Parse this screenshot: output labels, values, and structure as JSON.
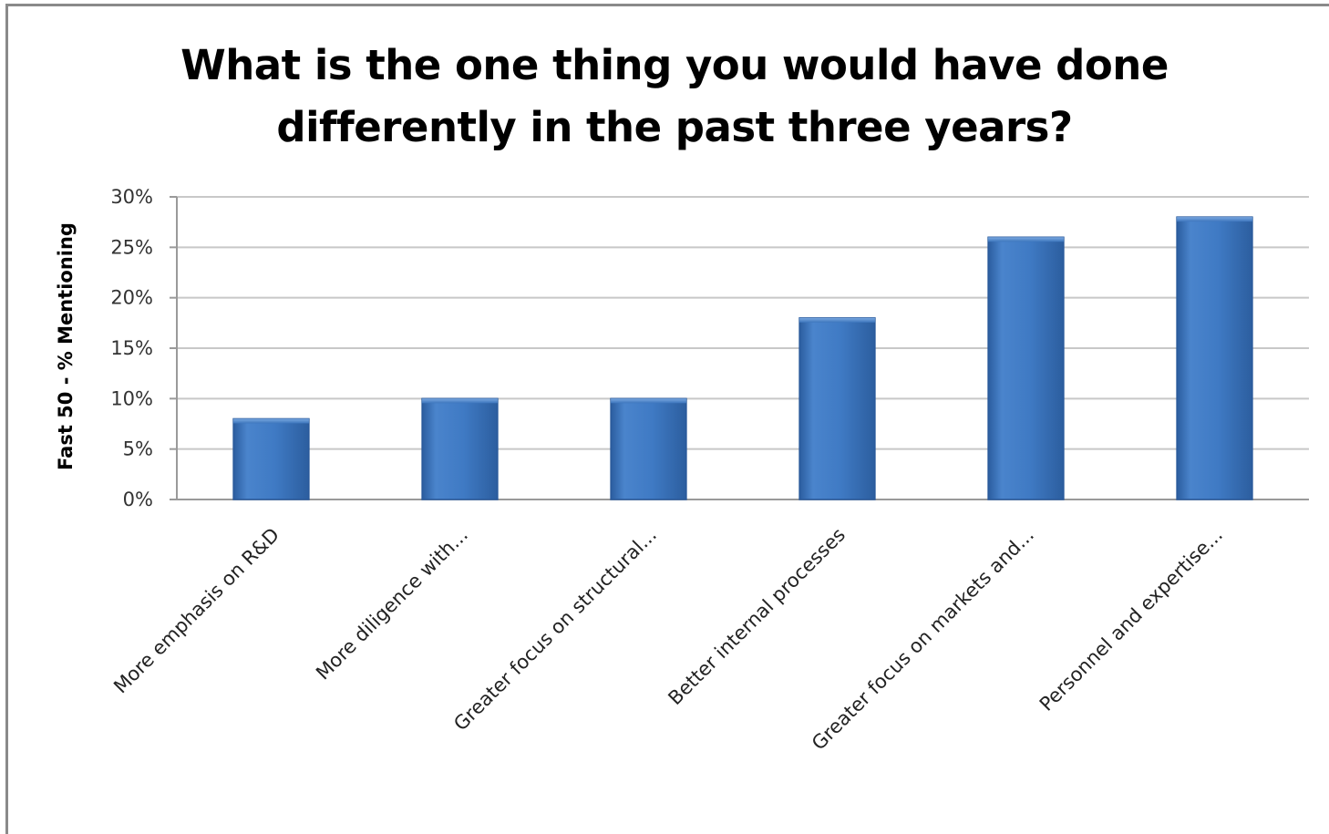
{
  "chart_data": {
    "type": "bar",
    "title": "What is the one thing you would have done\ndifferently in the past three years?",
    "xlabel": "",
    "ylabel": "Fast 50 - % Mentioning",
    "categories": [
      "More emphasis on R&D",
      "More diligence with...",
      "Greater focus on structural...",
      "Better internal processes",
      "Greater focus on markets and...",
      "Personnel and expertise..."
    ],
    "values": [
      8,
      10,
      10,
      18,
      26,
      28
    ],
    "ylim": [
      0,
      30
    ],
    "yticks": [
      0,
      5,
      10,
      15,
      20,
      25,
      30
    ],
    "ytick_labels": [
      "0%",
      "5%",
      "10%",
      "15%",
      "20%",
      "25%",
      "30%"
    ],
    "grid": true,
    "legend": "none",
    "bar_color": "#3a73bd",
    "bar_color_dark": "#2a5a9c",
    "bar_color_light": "#5e93d6"
  }
}
